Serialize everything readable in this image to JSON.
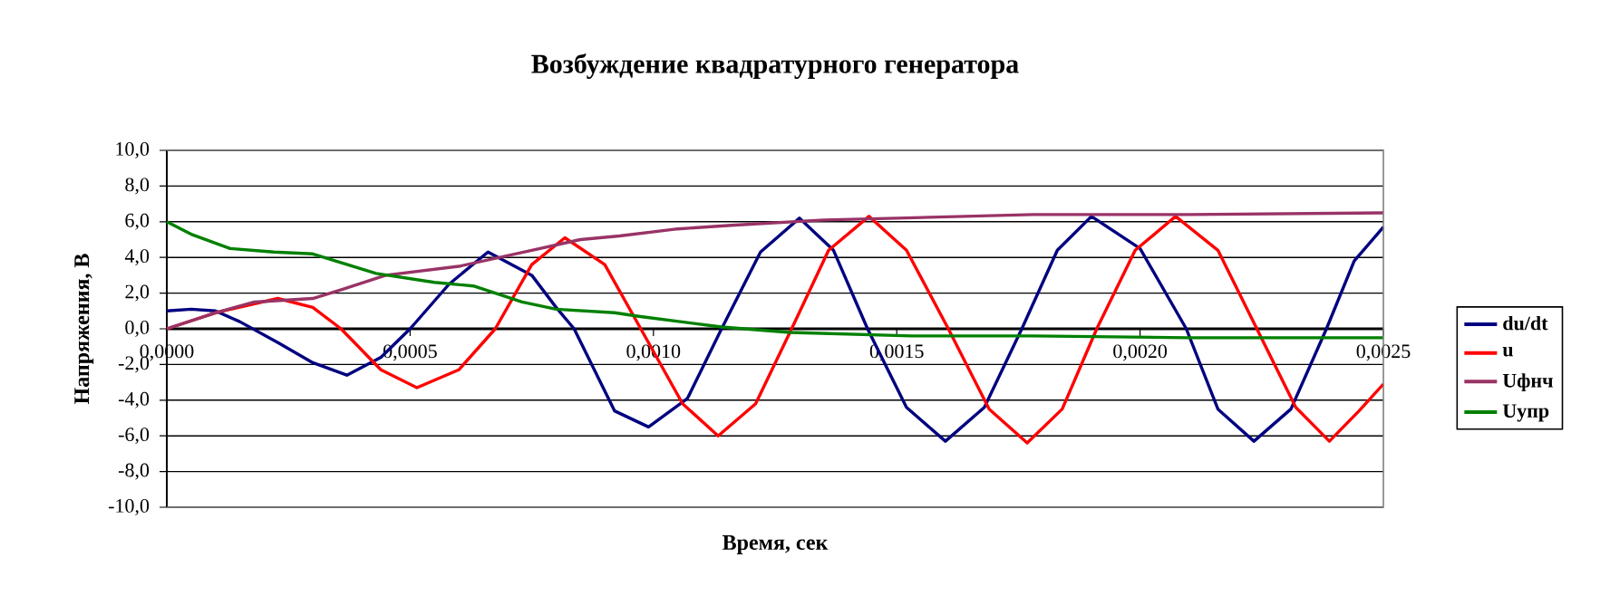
{
  "chart_data": {
    "type": "line",
    "title": "Возбуждение квадратурного генератора",
    "xlabel": "Время, сек",
    "ylabel": "Напряжения, В",
    "xlim": [
      0,
      0.0025
    ],
    "ylim": [
      -10,
      10
    ],
    "xticks": [
      {
        "value": 0,
        "label": "0,0000"
      },
      {
        "value": 0.0005,
        "label": "0,0005"
      },
      {
        "value": 0.001,
        "label": "0,0010"
      },
      {
        "value": 0.0015,
        "label": "0,0015"
      },
      {
        "value": 0.002,
        "label": "0,0020"
      },
      {
        "value": 0.0025,
        "label": "0,0025"
      }
    ],
    "yticks": [
      {
        "value": -10,
        "label": "-10,0"
      },
      {
        "value": -8,
        "label": "-8,0"
      },
      {
        "value": -6,
        "label": "-6,0"
      },
      {
        "value": -4,
        "label": "-4,0"
      },
      {
        "value": -2,
        "label": "-2,0"
      },
      {
        "value": 0,
        "label": "0,0"
      },
      {
        "value": 2,
        "label": "2,0"
      },
      {
        "value": 4,
        "label": "4,0"
      },
      {
        "value": 6,
        "label": "6,0"
      },
      {
        "value": 8,
        "label": "8,0"
      },
      {
        "value": 10,
        "label": "10,0"
      }
    ],
    "grid": "y",
    "legend": "right",
    "series": [
      {
        "name": "du/dt",
        "color": "#000080",
        "x": [
          0,
          5e-05,
          0.0001,
          0.00015,
          0.00023,
          0.0003,
          0.00037,
          0.00044,
          0.0005,
          0.00058,
          0.00066,
          0.00075,
          0.0008,
          0.000837,
          0.00092,
          0.00099,
          0.00107,
          0.00114,
          0.00122,
          0.0013,
          0.00137,
          0.00144,
          0.00152,
          0.0016,
          0.00168,
          0.001757,
          0.00183,
          0.0019,
          0.002,
          0.002095,
          0.00216,
          0.002234,
          0.00231,
          0.002383,
          0.00244,
          0.0025
        ],
        "values": [
          1.0,
          1.1,
          1.0,
          0.4,
          -0.8,
          -1.9,
          -2.6,
          -1.6,
          0.0,
          2.5,
          4.3,
          3.0,
          1.2,
          0.0,
          -4.6,
          -5.5,
          -3.9,
          0.0,
          4.3,
          6.2,
          4.4,
          0.0,
          -4.4,
          -6.3,
          -4.4,
          0.0,
          4.4,
          6.3,
          4.5,
          0.0,
          -4.5,
          -6.3,
          -4.5,
          0.0,
          3.8,
          5.7
        ]
      },
      {
        "name": "u",
        "color": "#ff0000",
        "x": [
          0,
          0.0001,
          0.000228,
          0.0003,
          0.000358,
          0.00044,
          0.000514,
          0.0006,
          0.000675,
          0.00075,
          0.000818,
          0.0009,
          0.000974,
          0.00106,
          0.001133,
          0.00121,
          0.001284,
          0.00136,
          0.001443,
          0.00152,
          0.001606,
          0.00169,
          0.001768,
          0.00184,
          0.001911,
          0.00199,
          0.002073,
          0.00216,
          0.00224,
          0.00232,
          0.002389,
          0.00245,
          0.0025
        ],
        "values": [
          0.0,
          0.9,
          1.7,
          1.2,
          0.0,
          -2.3,
          -3.3,
          -2.3,
          0.0,
          3.6,
          5.1,
          3.6,
          0.0,
          -4.2,
          -6.0,
          -4.2,
          0.0,
          4.4,
          6.3,
          4.4,
          0.0,
          -4.5,
          -6.4,
          -4.5,
          0.0,
          4.4,
          6.3,
          4.4,
          0.0,
          -4.4,
          -6.3,
          -4.6,
          -3.1
        ]
      },
      {
        "name": "Uфнч",
        "color": "#993366",
        "x": [
          0,
          0.0001,
          0.00018,
          0.0003,
          0.00036,
          0.00045,
          0.0006,
          0.00075,
          0.00085,
          0.00093,
          0.00105,
          0.00116,
          0.00135,
          0.0015,
          0.00178,
          0.0021,
          0.0025
        ],
        "values": [
          0.0,
          0.9,
          1.5,
          1.7,
          2.2,
          3.0,
          3.5,
          4.4,
          5.0,
          5.2,
          5.6,
          5.8,
          6.1,
          6.2,
          6.4,
          6.4,
          6.5
        ]
      },
      {
        "name": "Uупр",
        "color": "#008000",
        "x": [
          0,
          5e-05,
          0.00013,
          0.00022,
          0.0003,
          0.00043,
          0.00055,
          0.00063,
          0.00073,
          0.0008,
          0.00092,
          0.00097,
          0.00114,
          0.00128,
          0.00153,
          0.00178,
          0.0021,
          0.0025
        ],
        "values": [
          6.0,
          5.3,
          4.5,
          4.3,
          4.2,
          3.1,
          2.6,
          2.4,
          1.5,
          1.1,
          0.9,
          0.7,
          0.1,
          -0.2,
          -0.4,
          -0.4,
          -0.5,
          -0.5
        ]
      }
    ]
  }
}
